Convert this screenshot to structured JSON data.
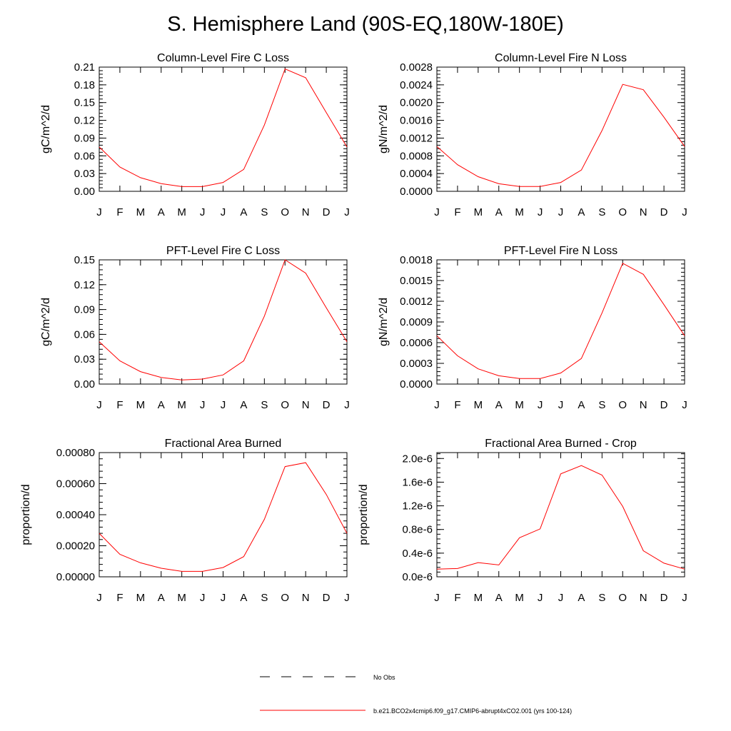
{
  "title": "S. Hemisphere Land (90S-EQ,180W-180E)",
  "legend": {
    "items": [
      {
        "label": "No Obs",
        "color": "#000000",
        "style": "dashed"
      },
      {
        "label": "b.e21.BCO2x4cmip6.f09_g17.CMIP6-abrupt4xCO2.001 (yrs 100-124)",
        "color": "#ff0000",
        "style": "solid"
      }
    ]
  },
  "chart_data": [
    {
      "type": "line",
      "title": "Column-Level Fire C Loss",
      "ylabel": "gC/m^2/d",
      "xlabel": "",
      "categories": [
        "J",
        "F",
        "M",
        "A",
        "M",
        "J",
        "J",
        "A",
        "S",
        "O",
        "N",
        "D",
        "J"
      ],
      "ylim": [
        0,
        0.21
      ],
      "yticks": [
        "0.00",
        "0.03",
        "0.06",
        "0.09",
        "0.12",
        "0.15",
        "0.18",
        "0.21"
      ],
      "series": [
        {
          "values": [
            0.075,
            0.041,
            0.023,
            0.013,
            0.008,
            0.008,
            0.015,
            0.037,
            0.112,
            0.207,
            0.192,
            0.133,
            0.075
          ],
          "color": "#ff0000"
        }
      ]
    },
    {
      "type": "line",
      "title": "Column-Level Fire N Loss",
      "ylabel": "gN/m^2/d",
      "xlabel": "",
      "categories": [
        "J",
        "F",
        "M",
        "A",
        "M",
        "J",
        "J",
        "A",
        "S",
        "O",
        "N",
        "D",
        "J"
      ],
      "ylim": [
        0,
        0.0028
      ],
      "yticks": [
        "0.0000",
        "0.0004",
        "0.0008",
        "0.0012",
        "0.0016",
        "0.0020",
        "0.0024",
        "0.0028"
      ],
      "series": [
        {
          "values": [
            0.00101,
            0.0006,
            0.00033,
            0.00017,
            0.00011,
            0.00011,
            0.0002,
            0.00048,
            0.00137,
            0.00241,
            0.00229,
            0.00167,
            0.00101
          ],
          "color": "#ff0000"
        }
      ]
    },
    {
      "type": "line",
      "title": "PFT-Level Fire C Loss",
      "ylabel": "gC/m^2/d",
      "xlabel": "",
      "categories": [
        "J",
        "F",
        "M",
        "A",
        "M",
        "J",
        "J",
        "A",
        "S",
        "O",
        "N",
        "D",
        "J"
      ],
      "ylim": [
        0,
        0.15
      ],
      "yticks": [
        "0.00",
        "0.03",
        "0.06",
        "0.09",
        "0.12",
        "0.15"
      ],
      "series": [
        {
          "values": [
            0.051,
            0.028,
            0.015,
            0.008,
            0.005,
            0.006,
            0.011,
            0.028,
            0.082,
            0.15,
            0.134,
            0.092,
            0.051
          ],
          "color": "#ff0000"
        }
      ]
    },
    {
      "type": "line",
      "title": "PFT-Level Fire N Loss",
      "ylabel": "gN/m^2/d",
      "xlabel": "",
      "categories": [
        "J",
        "F",
        "M",
        "A",
        "M",
        "J",
        "J",
        "A",
        "S",
        "O",
        "N",
        "D",
        "J"
      ],
      "ylim": [
        0,
        0.0018
      ],
      "yticks": [
        "0.0000",
        "0.0003",
        "0.0006",
        "0.0009",
        "0.0012",
        "0.0015",
        "0.0018"
      ],
      "series": [
        {
          "values": [
            0.0007,
            0.00041,
            0.00022,
            0.00012,
            8e-05,
            8e-05,
            0.00016,
            0.00037,
            0.00103,
            0.00175,
            0.00159,
            0.00115,
            0.0007
          ],
          "color": "#ff0000"
        }
      ]
    },
    {
      "type": "line",
      "title": "Fractional Area Burned",
      "ylabel": "proportion/d",
      "xlabel": "",
      "categories": [
        "J",
        "F",
        "M",
        "A",
        "M",
        "J",
        "J",
        "A",
        "S",
        "O",
        "N",
        "D",
        "J"
      ],
      "ylim": [
        0,
        0.0008
      ],
      "yticks": [
        "0.00000",
        "0.00020",
        "0.00040",
        "0.00060",
        "0.00080"
      ],
      "series": [
        {
          "values": [
            0.00028,
            0.000145,
            9e-05,
            5.5e-05,
            3.5e-05,
            3.5e-05,
            6e-05,
            0.00013,
            0.00037,
            0.00071,
            0.000735,
            0.00053,
            0.00028
          ],
          "color": "#ff0000"
        }
      ]
    },
    {
      "type": "line",
      "title": "Fractional Area Burned - Crop",
      "ylabel": "proportion/d",
      "xlabel": "",
      "categories": [
        "J",
        "F",
        "M",
        "A",
        "M",
        "J",
        "J",
        "A",
        "S",
        "O",
        "N",
        "D",
        "J"
      ],
      "ylim": [
        0,
        2.1e-06
      ],
      "ytickvalues": [
        0,
        4e-07,
        8e-07,
        1.2e-06,
        1.6e-06,
        2e-06
      ],
      "yticks": [
        "0.0e-6",
        "0.4e-6",
        "0.8e-6",
        "1.2e-6",
        "1.6e-6",
        "2.0e-6"
      ],
      "series": [
        {
          "values": [
            1.3e-07,
            1.4e-07,
            2.4e-07,
            2e-07,
            6.6e-07,
            8.1e-07,
            1.74e-06,
            1.88e-06,
            1.72e-06,
            1.19e-06,
            4.4e-07,
            2.3e-07,
            1.3e-07
          ],
          "color": "#ff0000"
        }
      ]
    }
  ]
}
